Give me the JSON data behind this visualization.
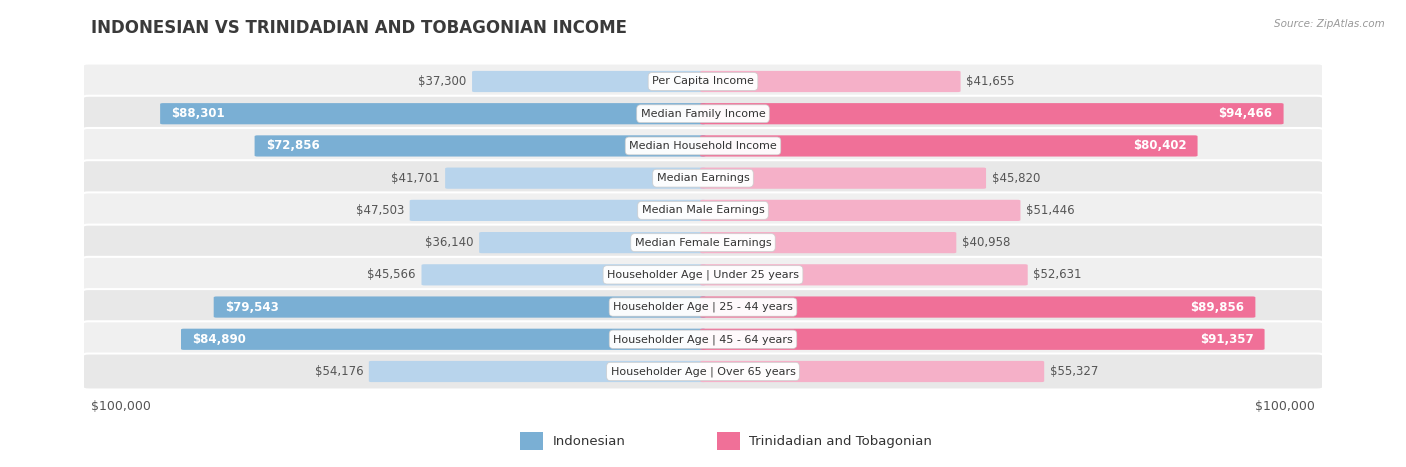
{
  "title": "INDONESIAN VS TRINIDADIAN AND TOBAGONIAN INCOME",
  "source": "Source: ZipAtlas.com",
  "categories": [
    "Per Capita Income",
    "Median Family Income",
    "Median Household Income",
    "Median Earnings",
    "Median Male Earnings",
    "Median Female Earnings",
    "Householder Age | Under 25 years",
    "Householder Age | 25 - 44 years",
    "Householder Age | 45 - 64 years",
    "Householder Age | Over 65 years"
  ],
  "indonesian": [
    37300,
    88301,
    72856,
    41701,
    47503,
    36140,
    45566,
    79543,
    84890,
    54176
  ],
  "trinidadian": [
    41655,
    94466,
    80402,
    45820,
    51446,
    40958,
    52631,
    89856,
    91357,
    55327
  ],
  "indonesian_labels": [
    "$37,300",
    "$88,301",
    "$72,856",
    "$41,701",
    "$47,503",
    "$36,140",
    "$45,566",
    "$79,543",
    "$84,890",
    "$54,176"
  ],
  "trinidadian_labels": [
    "$41,655",
    "$94,466",
    "$80,402",
    "$45,820",
    "$51,446",
    "$40,958",
    "$52,631",
    "$89,856",
    "$91,357",
    "$55,327"
  ],
  "max_val": 100000,
  "color_indonesian_light": "#b8d4ec",
  "color_indonesian_dark": "#7aafd4",
  "color_trinidadian_light": "#f5b0c8",
  "color_trinidadian_dark": "#f07098",
  "row_colors": [
    "#f0f0f0",
    "#e8e8e8"
  ],
  "label_fontsize": 8.5,
  "title_fontsize": 12,
  "legend_fontsize": 9.5,
  "dark_threshold": 62000
}
